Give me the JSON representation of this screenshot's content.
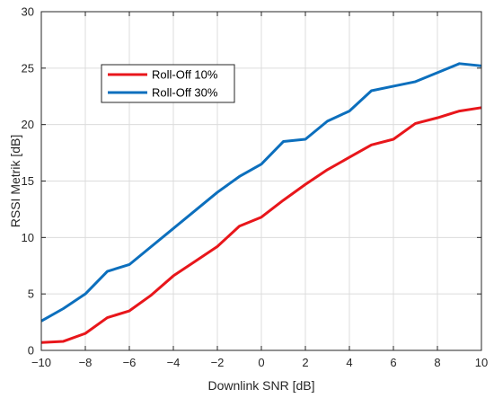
{
  "chart_data": {
    "type": "line",
    "title": "",
    "xlabel": "Downlink SNR [dB]",
    "ylabel": "RSSI Metrik [dB]",
    "xlim": [
      -10,
      10
    ],
    "ylim": [
      0,
      30
    ],
    "xticks": [
      -10,
      -8,
      -6,
      -4,
      -2,
      0,
      2,
      4,
      6,
      8,
      10
    ],
    "yticks": [
      0,
      5,
      10,
      15,
      20,
      25,
      30
    ],
    "grid": true,
    "legend": "upper-left",
    "x": [
      -10,
      -9,
      -8,
      -7,
      -6,
      -5,
      -4,
      -3,
      -2,
      -1,
      0,
      1,
      2,
      3,
      4,
      5,
      6,
      7,
      8,
      9,
      10
    ],
    "series": [
      {
        "name": "Roll-Off 10%",
        "color": "#e8161b",
        "values": [
          0.7,
          0.8,
          1.5,
          2.9,
          3.5,
          4.9,
          6.6,
          7.9,
          9.2,
          11.0,
          11.8,
          13.3,
          14.7,
          16.0,
          17.1,
          18.2,
          18.7,
          20.1,
          20.6,
          21.2,
          21.5
        ]
      },
      {
        "name": "Roll-Off 30%",
        "color": "#0c6fbd",
        "values": [
          2.6,
          3.7,
          5.0,
          7.0,
          7.6,
          9.2,
          10.8,
          12.4,
          14.0,
          15.4,
          16.5,
          18.5,
          18.7,
          20.3,
          21.2,
          23.0,
          23.4,
          23.8,
          24.6,
          25.4,
          25.2
        ]
      }
    ]
  }
}
